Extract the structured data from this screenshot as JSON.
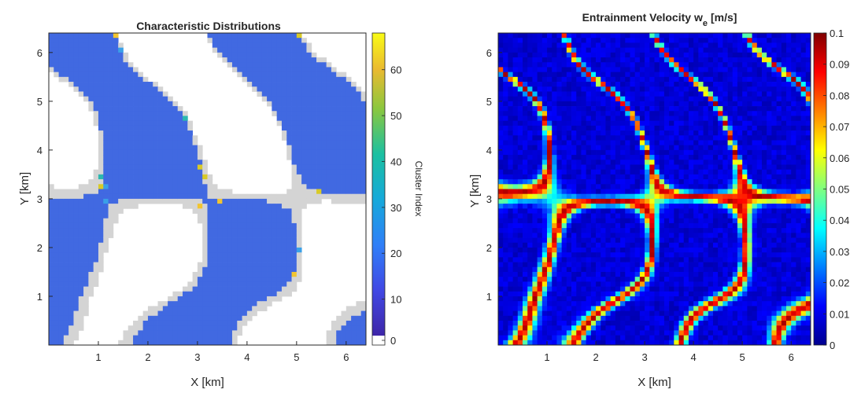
{
  "chart_data": [
    {
      "type": "heatmap",
      "title": "Characteristic Distributions",
      "xlabel": "X [km]",
      "ylabel": "Y [km]",
      "xlim": [
        0,
        6.4
      ],
      "ylim": [
        0,
        6.4
      ],
      "xticks": [
        1,
        2,
        3,
        4,
        5,
        6
      ],
      "yticks": [
        1,
        2,
        3,
        4,
        5,
        6
      ],
      "colorbar": {
        "label": "Cluster Index",
        "range": [
          0,
          68
        ],
        "ticks": [
          0,
          10,
          20,
          30,
          40,
          50,
          60
        ],
        "colormap": "parula-with-white-zero",
        "zero_color": "#ffffff"
      },
      "categories": [
        "background (white)",
        "cloud-free region (grey)",
        "cluster 1 (blue)",
        "scattered clusters 10-68"
      ],
      "colors": {
        "white": "#ffffff",
        "grey": "#d4d4d4",
        "blue": "#4169e1"
      },
      "legend_position": "colorbar-right"
    },
    {
      "type": "heatmap",
      "title": "Entrainment Velocity w",
      "title_sub": "e",
      "title_unit": "[m/s]",
      "xlabel": "X [km]",
      "ylabel": "Y [km]",
      "xlim": [
        0,
        6.4
      ],
      "ylim": [
        0,
        6.4
      ],
      "xticks": [
        1,
        2,
        3,
        4,
        5,
        6
      ],
      "yticks": [
        1,
        2,
        3,
        4,
        5,
        6
      ],
      "colorbar": {
        "range": [
          0,
          0.1
        ],
        "ticks": [
          "0",
          "0.01",
          "0.02",
          "0.03",
          "0.04",
          "0.05",
          "0.06",
          "0.07",
          "0.08",
          "0.09",
          "0.1"
        ],
        "colormap": "jet"
      },
      "legend_position": "colorbar-right"
    }
  ]
}
